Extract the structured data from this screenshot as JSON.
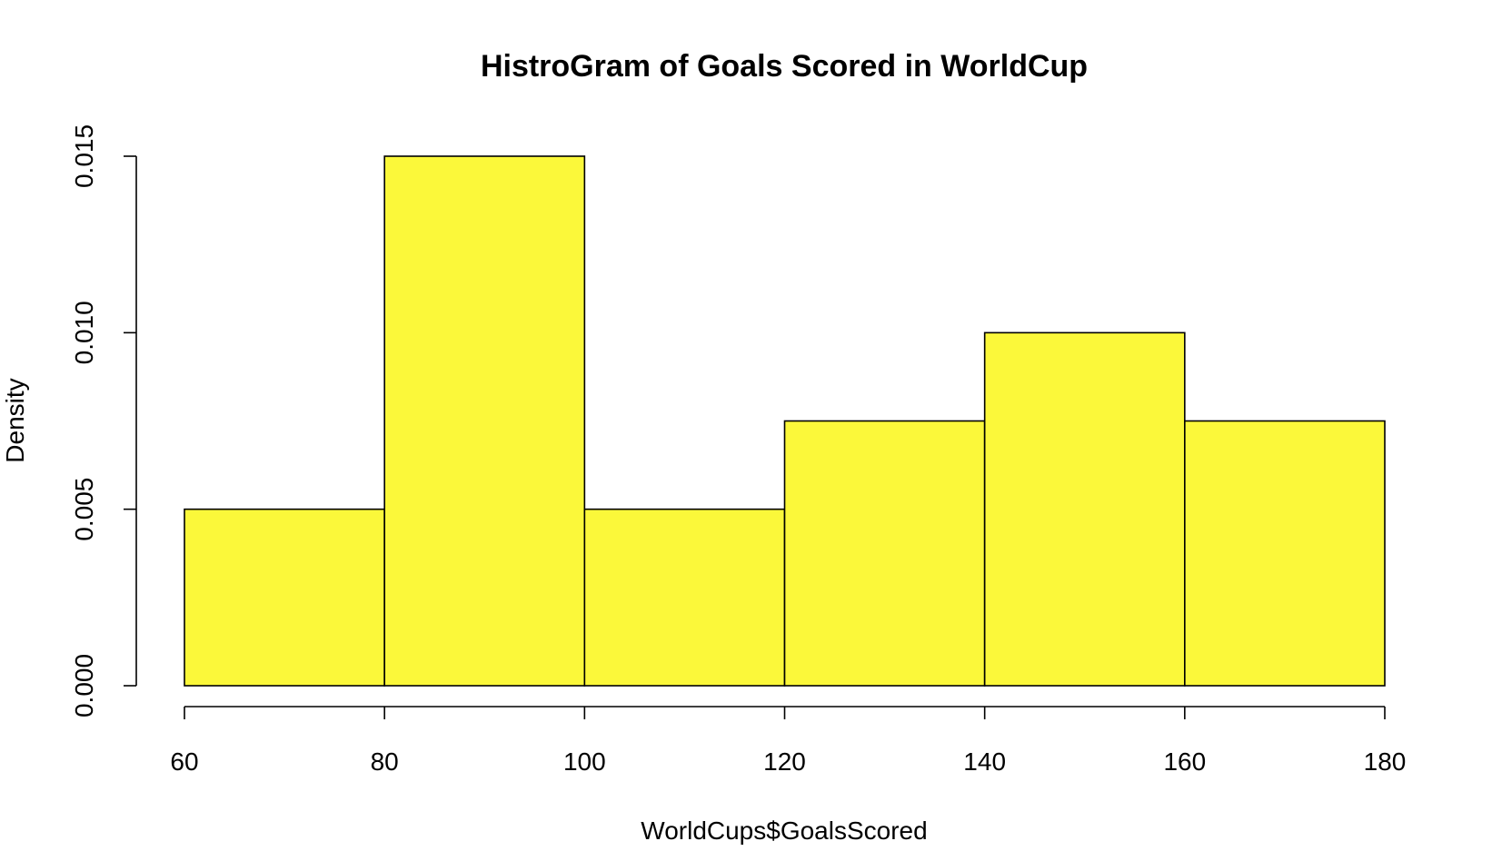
{
  "chart_data": {
    "type": "bar",
    "title": "HistroGram of Goals Scored in WorldCup",
    "xlabel": "WorldCups$GoalsScored",
    "ylabel": "Density",
    "bins": [
      {
        "start": 60,
        "end": 80,
        "density": 0.005
      },
      {
        "start": 80,
        "end": 100,
        "density": 0.015
      },
      {
        "start": 100,
        "end": 120,
        "density": 0.005
      },
      {
        "start": 120,
        "end": 140,
        "density": 0.0075
      },
      {
        "start": 140,
        "end": 160,
        "density": 0.01
      },
      {
        "start": 160,
        "end": 180,
        "density": 0.0075
      }
    ],
    "xlim": [
      60,
      180
    ],
    "ylim": [
      0,
      0.015
    ],
    "x_ticks": [
      "60",
      "80",
      "100",
      "120",
      "140",
      "160",
      "180"
    ],
    "y_ticks": [
      "0.000",
      "0.005",
      "0.010",
      "0.015"
    ],
    "bar_color": "#fbf83a",
    "grid": false,
    "legend": "none"
  }
}
